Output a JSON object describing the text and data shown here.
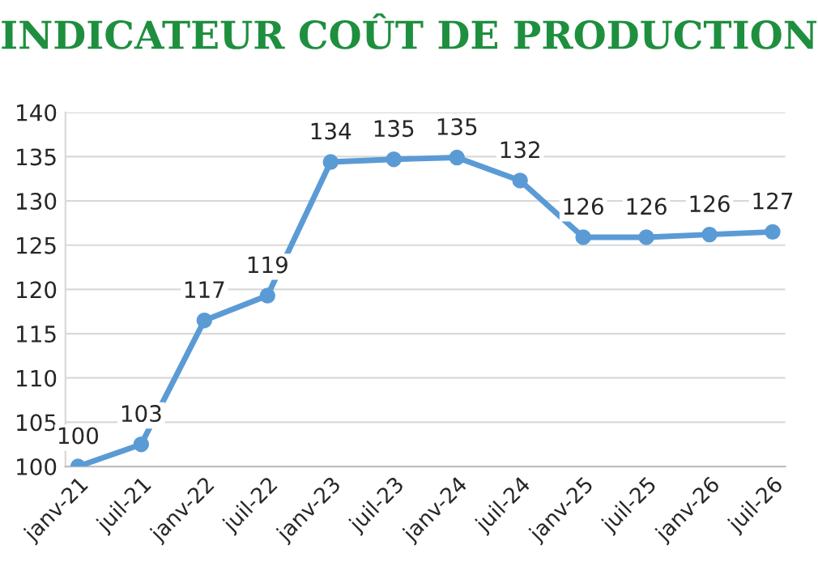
{
  "chart_data": {
    "type": "line",
    "title": "INDICATEUR COÛT DE PRODUCTION",
    "categories": [
      "janv-21",
      "juil-21",
      "janv-22",
      "juil-22",
      "janv-23",
      "juil-23",
      "janv-24",
      "juil-24",
      "janv-25",
      "juil-25",
      "janv-26",
      "juil-26"
    ],
    "series": [
      {
        "color": "#5b9bd5",
        "values": [
          100,
          102.5,
          116.5,
          119.3,
          134.4,
          134.7,
          134.9,
          132.3,
          125.9,
          125.9,
          126.2,
          126.5
        ],
        "value_labels": [
          "100",
          "103",
          "117",
          "119",
          "134",
          "135",
          "135",
          "132",
          "126",
          "126",
          "126",
          "127"
        ]
      }
    ],
    "ylim": [
      100,
      140
    ],
    "yticks": [
      100,
      105,
      110,
      115,
      120,
      125,
      130,
      135,
      140
    ],
    "grid": "y",
    "marker": "circle",
    "line_style": "solid",
    "legend": false
  }
}
